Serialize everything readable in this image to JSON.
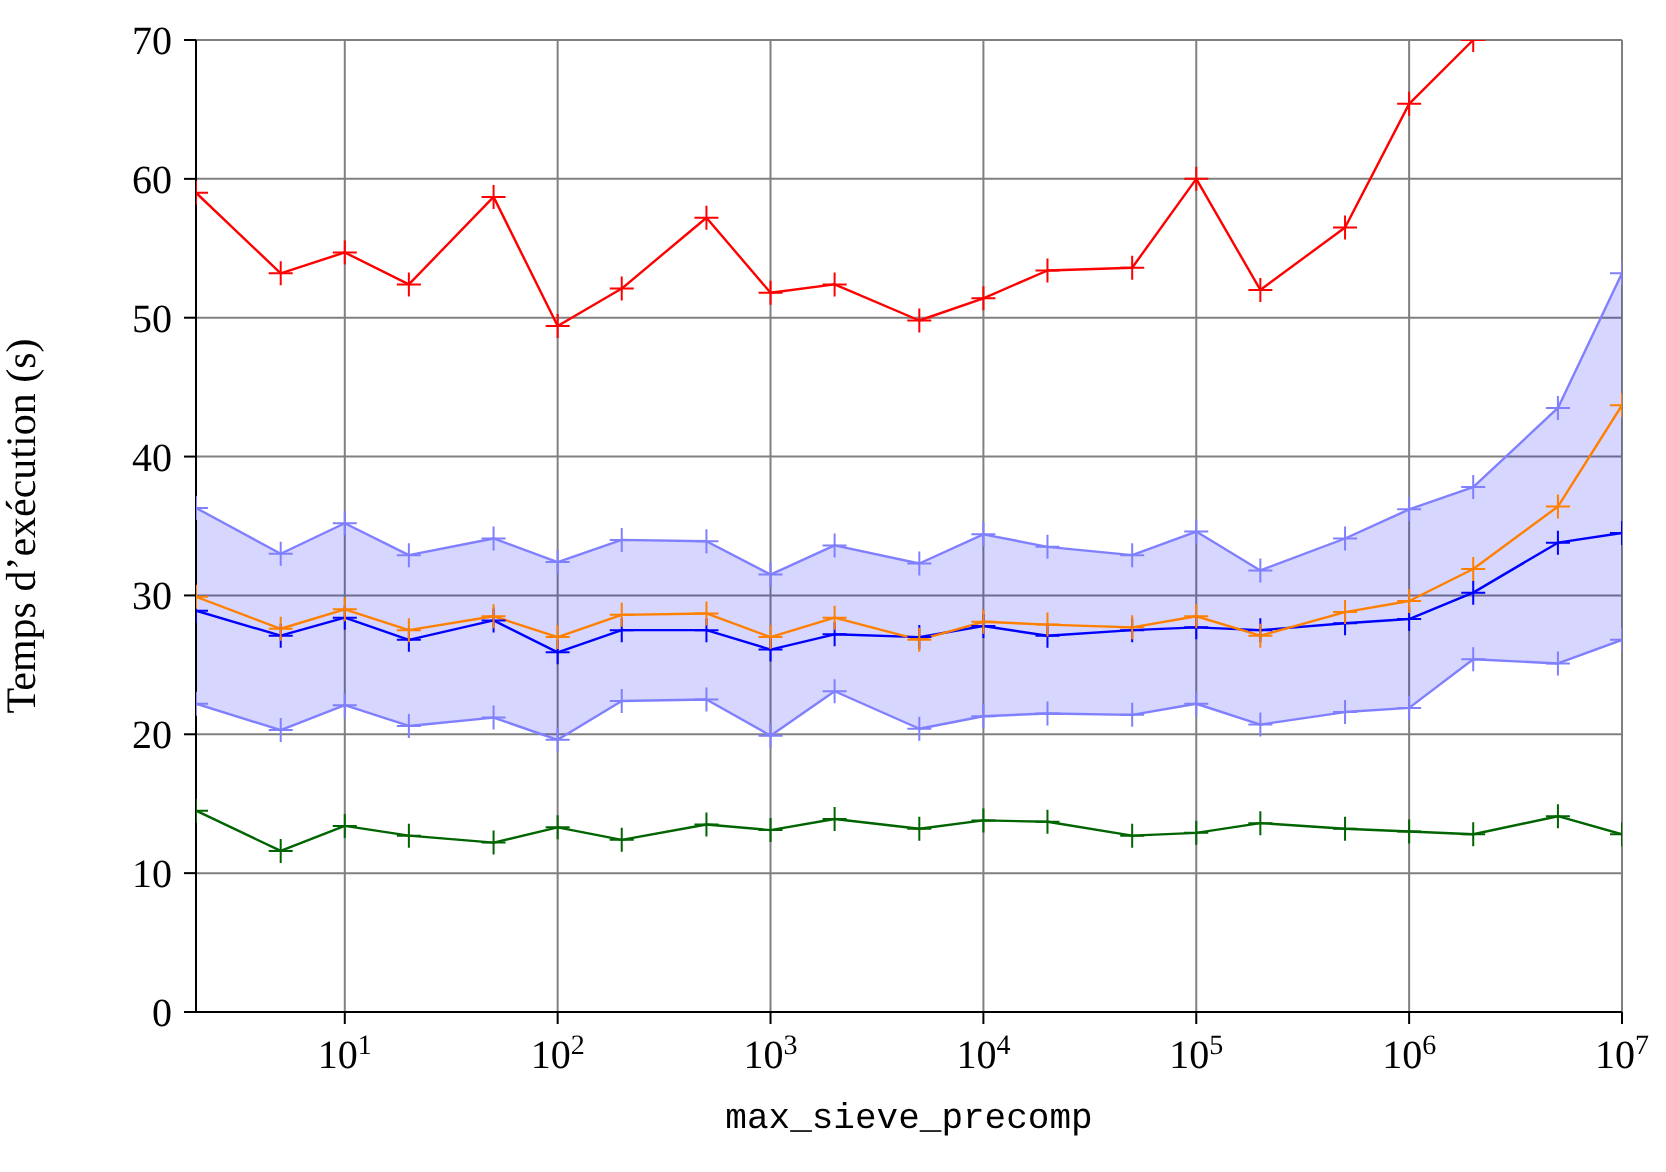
{
  "chart_data": {
    "type": "line",
    "xlabel": "max_sieve_precomp",
    "ylabel": "Temps d’exécution (s)",
    "x": [
      2,
      5,
      10,
      20,
      50,
      100,
      200,
      500,
      1000,
      2000,
      5000,
      10000,
      20000,
      50000,
      100000,
      200000,
      500000,
      1000000,
      2000000,
      5000000,
      10000000
    ],
    "log": "x",
    "xlim": [
      2,
      10000000
    ],
    "ylim": [
      0,
      70
    ],
    "xticks": [
      {
        "value": 10,
        "label": "10$^{1}$"
      },
      {
        "value": 100,
        "label": "10$^{2}$"
      },
      {
        "value": 1000,
        "label": "10$^{3}$"
      },
      {
        "value": 10000,
        "label": "10$^{4}$"
      },
      {
        "value": 100000,
        "label": "10$^{5}$"
      },
      {
        "value": 1000000,
        "label": "10$^{6}$"
      },
      {
        "value": 10000000,
        "label": "10$^{7}$"
      }
    ],
    "yticks": [
      0,
      10,
      20,
      30,
      40,
      50,
      60,
      70
    ],
    "grid": true,
    "legend": false,
    "marker": "cross",
    "line_style": "solid",
    "series": [
      {
        "color": "#ff0000",
        "values": [
          59,
          53.2,
          54.7,
          52.4,
          58.7,
          49.4,
          52.1,
          57.2,
          51.8,
          52.4,
          49.8,
          51.4,
          53.4,
          53.6,
          60,
          52,
          56.5,
          65.4,
          70,
          null,
          null
        ]
      },
      {
        "color": "#0000ff",
        "values": [
          28.9,
          27.1,
          28.4,
          26.8,
          28.2,
          25.9,
          27.5,
          27.5,
          26.1,
          27.2,
          27,
          27.8,
          27.1,
          27.5,
          27.7,
          27.5,
          28,
          28.3,
          30.2,
          33.8,
          34.5
        ],
        "lower": [
          22.2,
          20.3,
          22.1,
          20.6,
          21.2,
          19.6,
          22.4,
          22.5,
          19.9,
          23.1,
          20.4,
          21.3,
          21.5,
          21.4,
          22.2,
          20.7,
          21.6,
          21.9,
          25.4,
          25.1,
          26.8
        ],
        "upper": [
          36.3,
          33,
          35.2,
          32.9,
          34.1,
          32.4,
          34,
          33.9,
          31.5,
          33.6,
          32.3,
          34.4,
          33.5,
          32.9,
          34.6,
          31.8,
          34.1,
          36.2,
          37.8,
          43.5,
          53.2
        ]
      },
      {
        "color": "#8080ff",
        "values": [
          22.2,
          20.3,
          22.1,
          20.6,
          21.2,
          19.6,
          22.4,
          22.5,
          19.9,
          23.1,
          20.4,
          21.3,
          21.5,
          21.4,
          22.2,
          20.7,
          21.6,
          21.9,
          25.4,
          25.1,
          26.8
        ]
      },
      {
        "color": "#8080ff",
        "values": [
          36.3,
          33,
          35.2,
          32.9,
          34.1,
          32.4,
          34,
          33.9,
          31.5,
          33.6,
          32.3,
          34.4,
          33.5,
          32.9,
          34.6,
          31.8,
          34.1,
          36.2,
          37.8,
          43.5,
          53.2
        ]
      },
      {
        "color": "#ff8000",
        "values": [
          29.9,
          27.6,
          29,
          27.5,
          28.5,
          27,
          28.6,
          28.7,
          27,
          28.4,
          26.8,
          28.1,
          27.9,
          27.7,
          28.5,
          27.1,
          28.8,
          29.6,
          31.9,
          36.4,
          43.7
        ]
      },
      {
        "color": "#006400",
        "values": [
          14.5,
          11.6,
          13.4,
          12.7,
          12.2,
          13.3,
          12.4,
          13.5,
          13.1,
          13.9,
          13.2,
          13.8,
          13.7,
          12.7,
          12.9,
          13.6,
          13.2,
          13,
          12.8,
          14.1,
          12.8
        ]
      }
    ]
  }
}
